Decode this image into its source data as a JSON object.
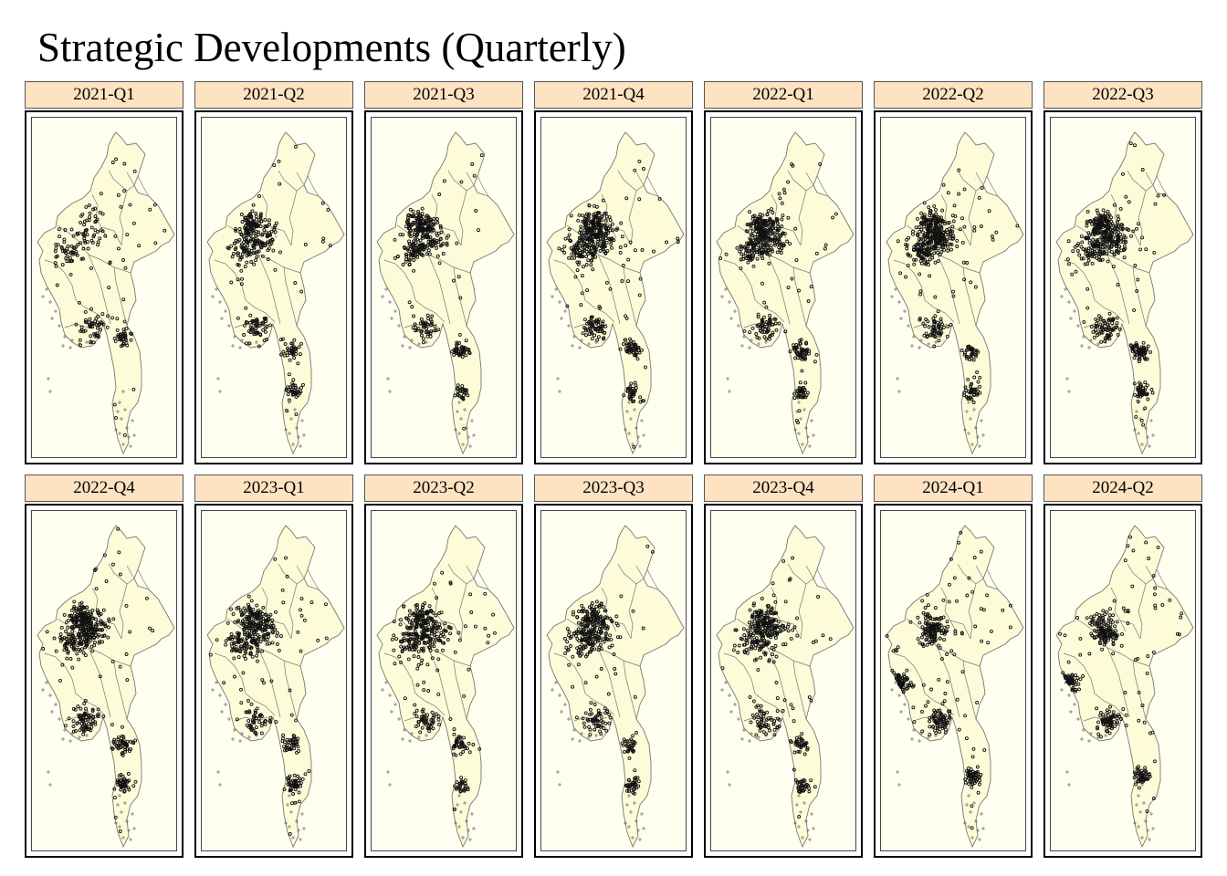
{
  "title": "Strategic Developments (Quarterly)",
  "map": {
    "region": "Myanmar",
    "land_color": "#fdfbd8",
    "background_color": "#fffff0",
    "border_color": "#777777",
    "coast_color": "#6e6e6e",
    "point_color": "#111111",
    "label_background": "#fde3c1"
  },
  "panels": [
    {
      "label": "2021-Q1",
      "density": 0.25,
      "focus": "mixed"
    },
    {
      "label": "2021-Q2",
      "density": 0.55,
      "focus": "central-west"
    },
    {
      "label": "2021-Q3",
      "density": 0.6,
      "focus": "central-west"
    },
    {
      "label": "2021-Q4",
      "density": 0.8,
      "focus": "central-west"
    },
    {
      "label": "2022-Q1",
      "density": 0.75,
      "focus": "central-west"
    },
    {
      "label": "2022-Q2",
      "density": 0.8,
      "focus": "central-west"
    },
    {
      "label": "2022-Q3",
      "density": 0.85,
      "focus": "central-west"
    },
    {
      "label": "2022-Q4",
      "density": 0.8,
      "focus": "central-west"
    },
    {
      "label": "2023-Q1",
      "density": 0.7,
      "focus": "central-west"
    },
    {
      "label": "2023-Q2",
      "density": 0.65,
      "focus": "central-west"
    },
    {
      "label": "2023-Q3",
      "density": 0.6,
      "focus": "central-west"
    },
    {
      "label": "2023-Q4",
      "density": 0.6,
      "focus": "central-west"
    },
    {
      "label": "2024-Q1",
      "density": 0.55,
      "focus": "west-coast"
    },
    {
      "label": "2024-Q2",
      "density": 0.5,
      "focus": "west-coast"
    }
  ]
}
